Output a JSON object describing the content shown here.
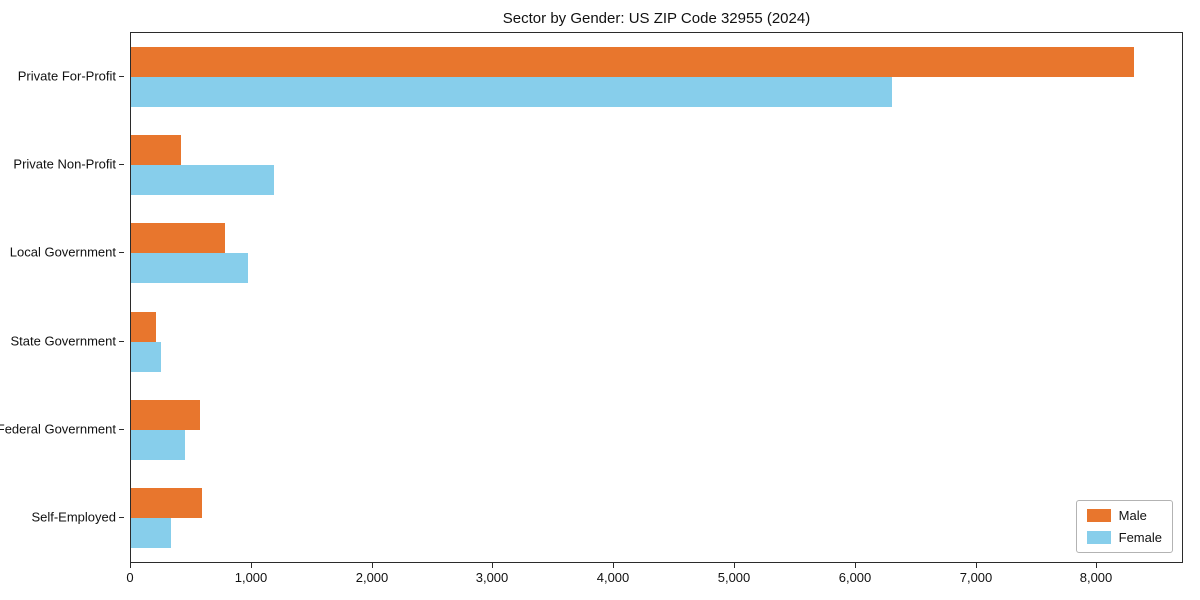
{
  "chart_data": {
    "type": "bar",
    "orientation": "horizontal",
    "title": "Sector by Gender: US ZIP Code 32955 (2024)",
    "categories": [
      "Private For-Profit",
      "Private Non-Profit",
      "Local Government",
      "State Government",
      "Federal Government",
      "Self-Employed"
    ],
    "series": [
      {
        "name": "Male",
        "color": "#e8762d",
        "values": [
          8300,
          410,
          780,
          210,
          570,
          590
        ]
      },
      {
        "name": "Female",
        "color": "#87ceeb",
        "values": [
          6300,
          1180,
          970,
          250,
          450,
          330
        ]
      }
    ],
    "xlabel": "",
    "ylabel": "",
    "xlim": [
      0,
      8700
    ],
    "xticks": [
      0,
      1000,
      2000,
      3000,
      4000,
      5000,
      6000,
      7000,
      8000
    ],
    "xtick_labels": [
      "0",
      "1,000",
      "2,000",
      "3,000",
      "4,000",
      "5,000",
      "6,000",
      "7,000",
      "8,000"
    ],
    "legend_position": "lower right",
    "grid": false
  }
}
